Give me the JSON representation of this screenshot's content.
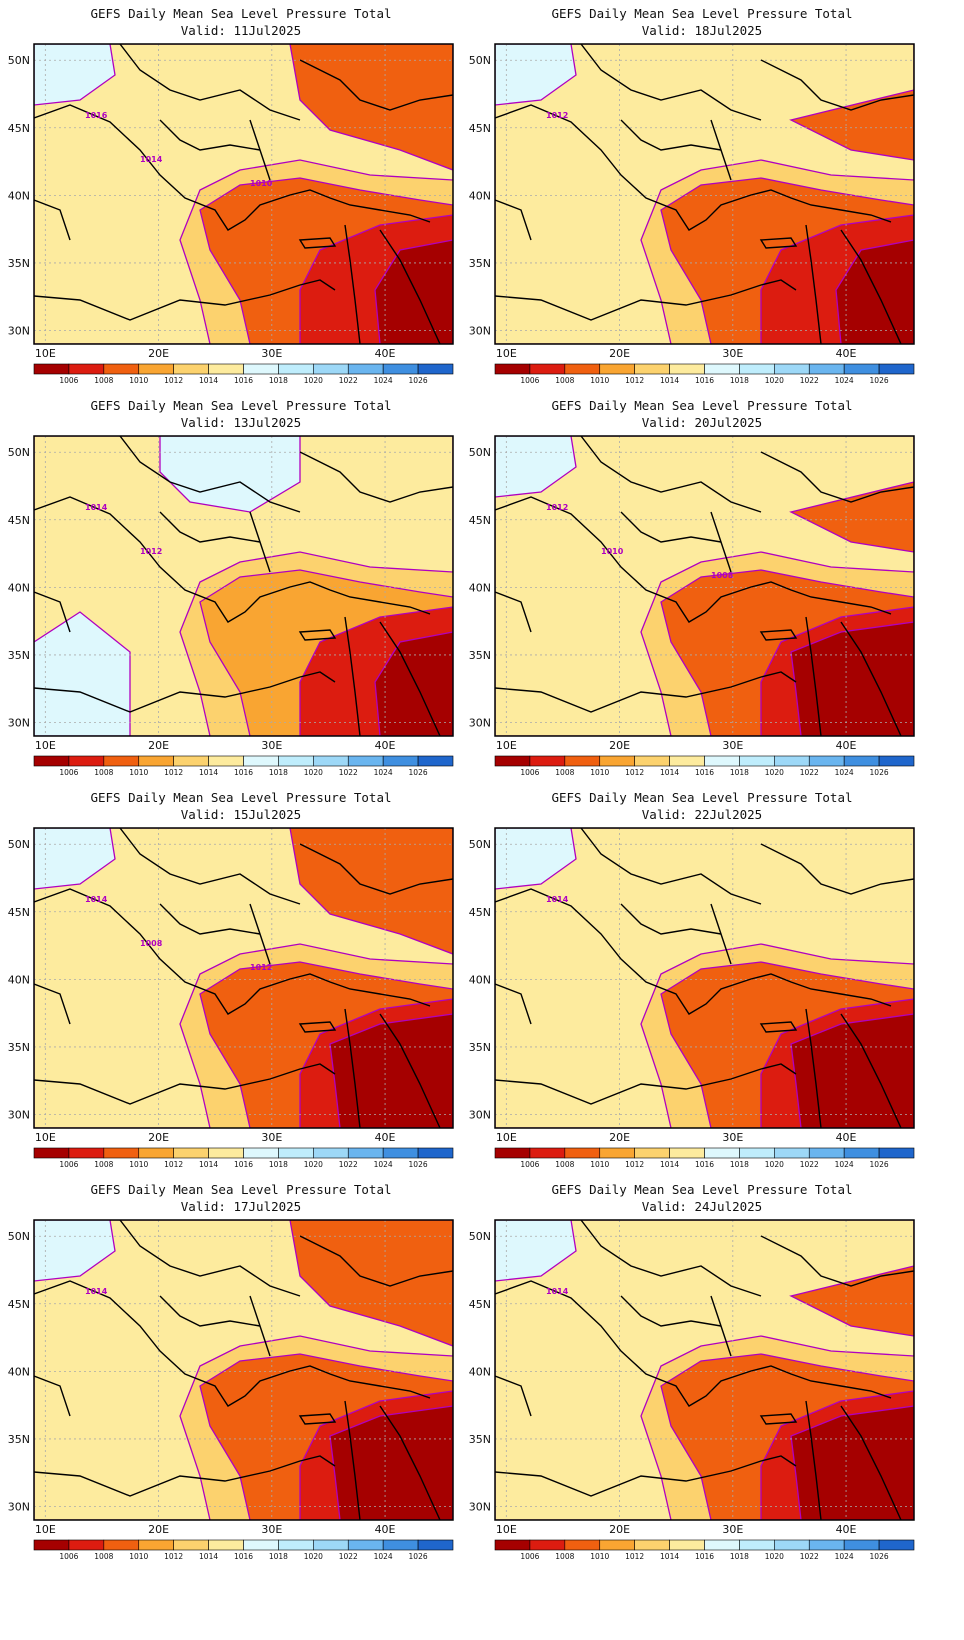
{
  "panels": [
    {
      "title": "GEFS Daily Mean Sea Level Pressure Total",
      "valid": "Valid: 11Jul2025",
      "contour_labels": [
        "1016",
        "1014",
        "1010"
      ],
      "variant": 0
    },
    {
      "title": "GEFS Daily Mean Sea Level Pressure Total",
      "valid": "Valid: 18Jul2025",
      "contour_labels": [
        "1012"
      ],
      "variant": 1
    },
    {
      "title": "GEFS Daily Mean Sea Level Pressure Total",
      "valid": "Valid: 13Jul2025",
      "contour_labels": [
        "1014",
        "1012"
      ],
      "variant": 2
    },
    {
      "title": "GEFS Daily Mean Sea Level Pressure Total",
      "valid": "Valid: 20Jul2025",
      "contour_labels": [
        "1012",
        "1010",
        "1008"
      ],
      "variant": 3
    },
    {
      "title": "GEFS Daily Mean Sea Level Pressure Total",
      "valid": "Valid: 15Jul2025",
      "contour_labels": [
        "1014",
        "1008",
        "1012"
      ],
      "variant": 4
    },
    {
      "title": "GEFS Daily Mean Sea Level Pressure Total",
      "valid": "Valid: 22Jul2025",
      "contour_labels": [
        "1014"
      ],
      "variant": 5
    },
    {
      "title": "GEFS Daily Mean Sea Level Pressure Total",
      "valid": "Valid: 17Jul2025",
      "contour_labels": [
        "1014"
      ],
      "variant": 6
    },
    {
      "title": "GEFS Daily Mean Sea Level Pressure Total",
      "valid": "Valid: 24Jul2025",
      "contour_labels": [
        "1014"
      ],
      "variant": 7
    }
  ],
  "axes": {
    "lat_ticks": [
      "50N",
      "45N",
      "40N",
      "35N",
      "30N"
    ],
    "lon_ticks": [
      "10E",
      "20E",
      "30E",
      "40E"
    ]
  },
  "colorbar": {
    "labels": [
      "1006",
      "1008",
      "1010",
      "1012",
      "1014",
      "1016",
      "1018",
      "1020",
      "1022",
      "1024",
      "1026"
    ],
    "colors": [
      "#a50000",
      "#dc1c10",
      "#f06010",
      "#f9a532",
      "#fcd26e",
      "#fdeb9e",
      "#def8fd",
      "#bfedfc",
      "#9dd8f7",
      "#6ab5ef",
      "#3f8fe0",
      "#1f66cc"
    ]
  },
  "colors": {
    "contour": "#b000c0",
    "coast": "#000000",
    "grid": "#aaaaaa"
  }
}
